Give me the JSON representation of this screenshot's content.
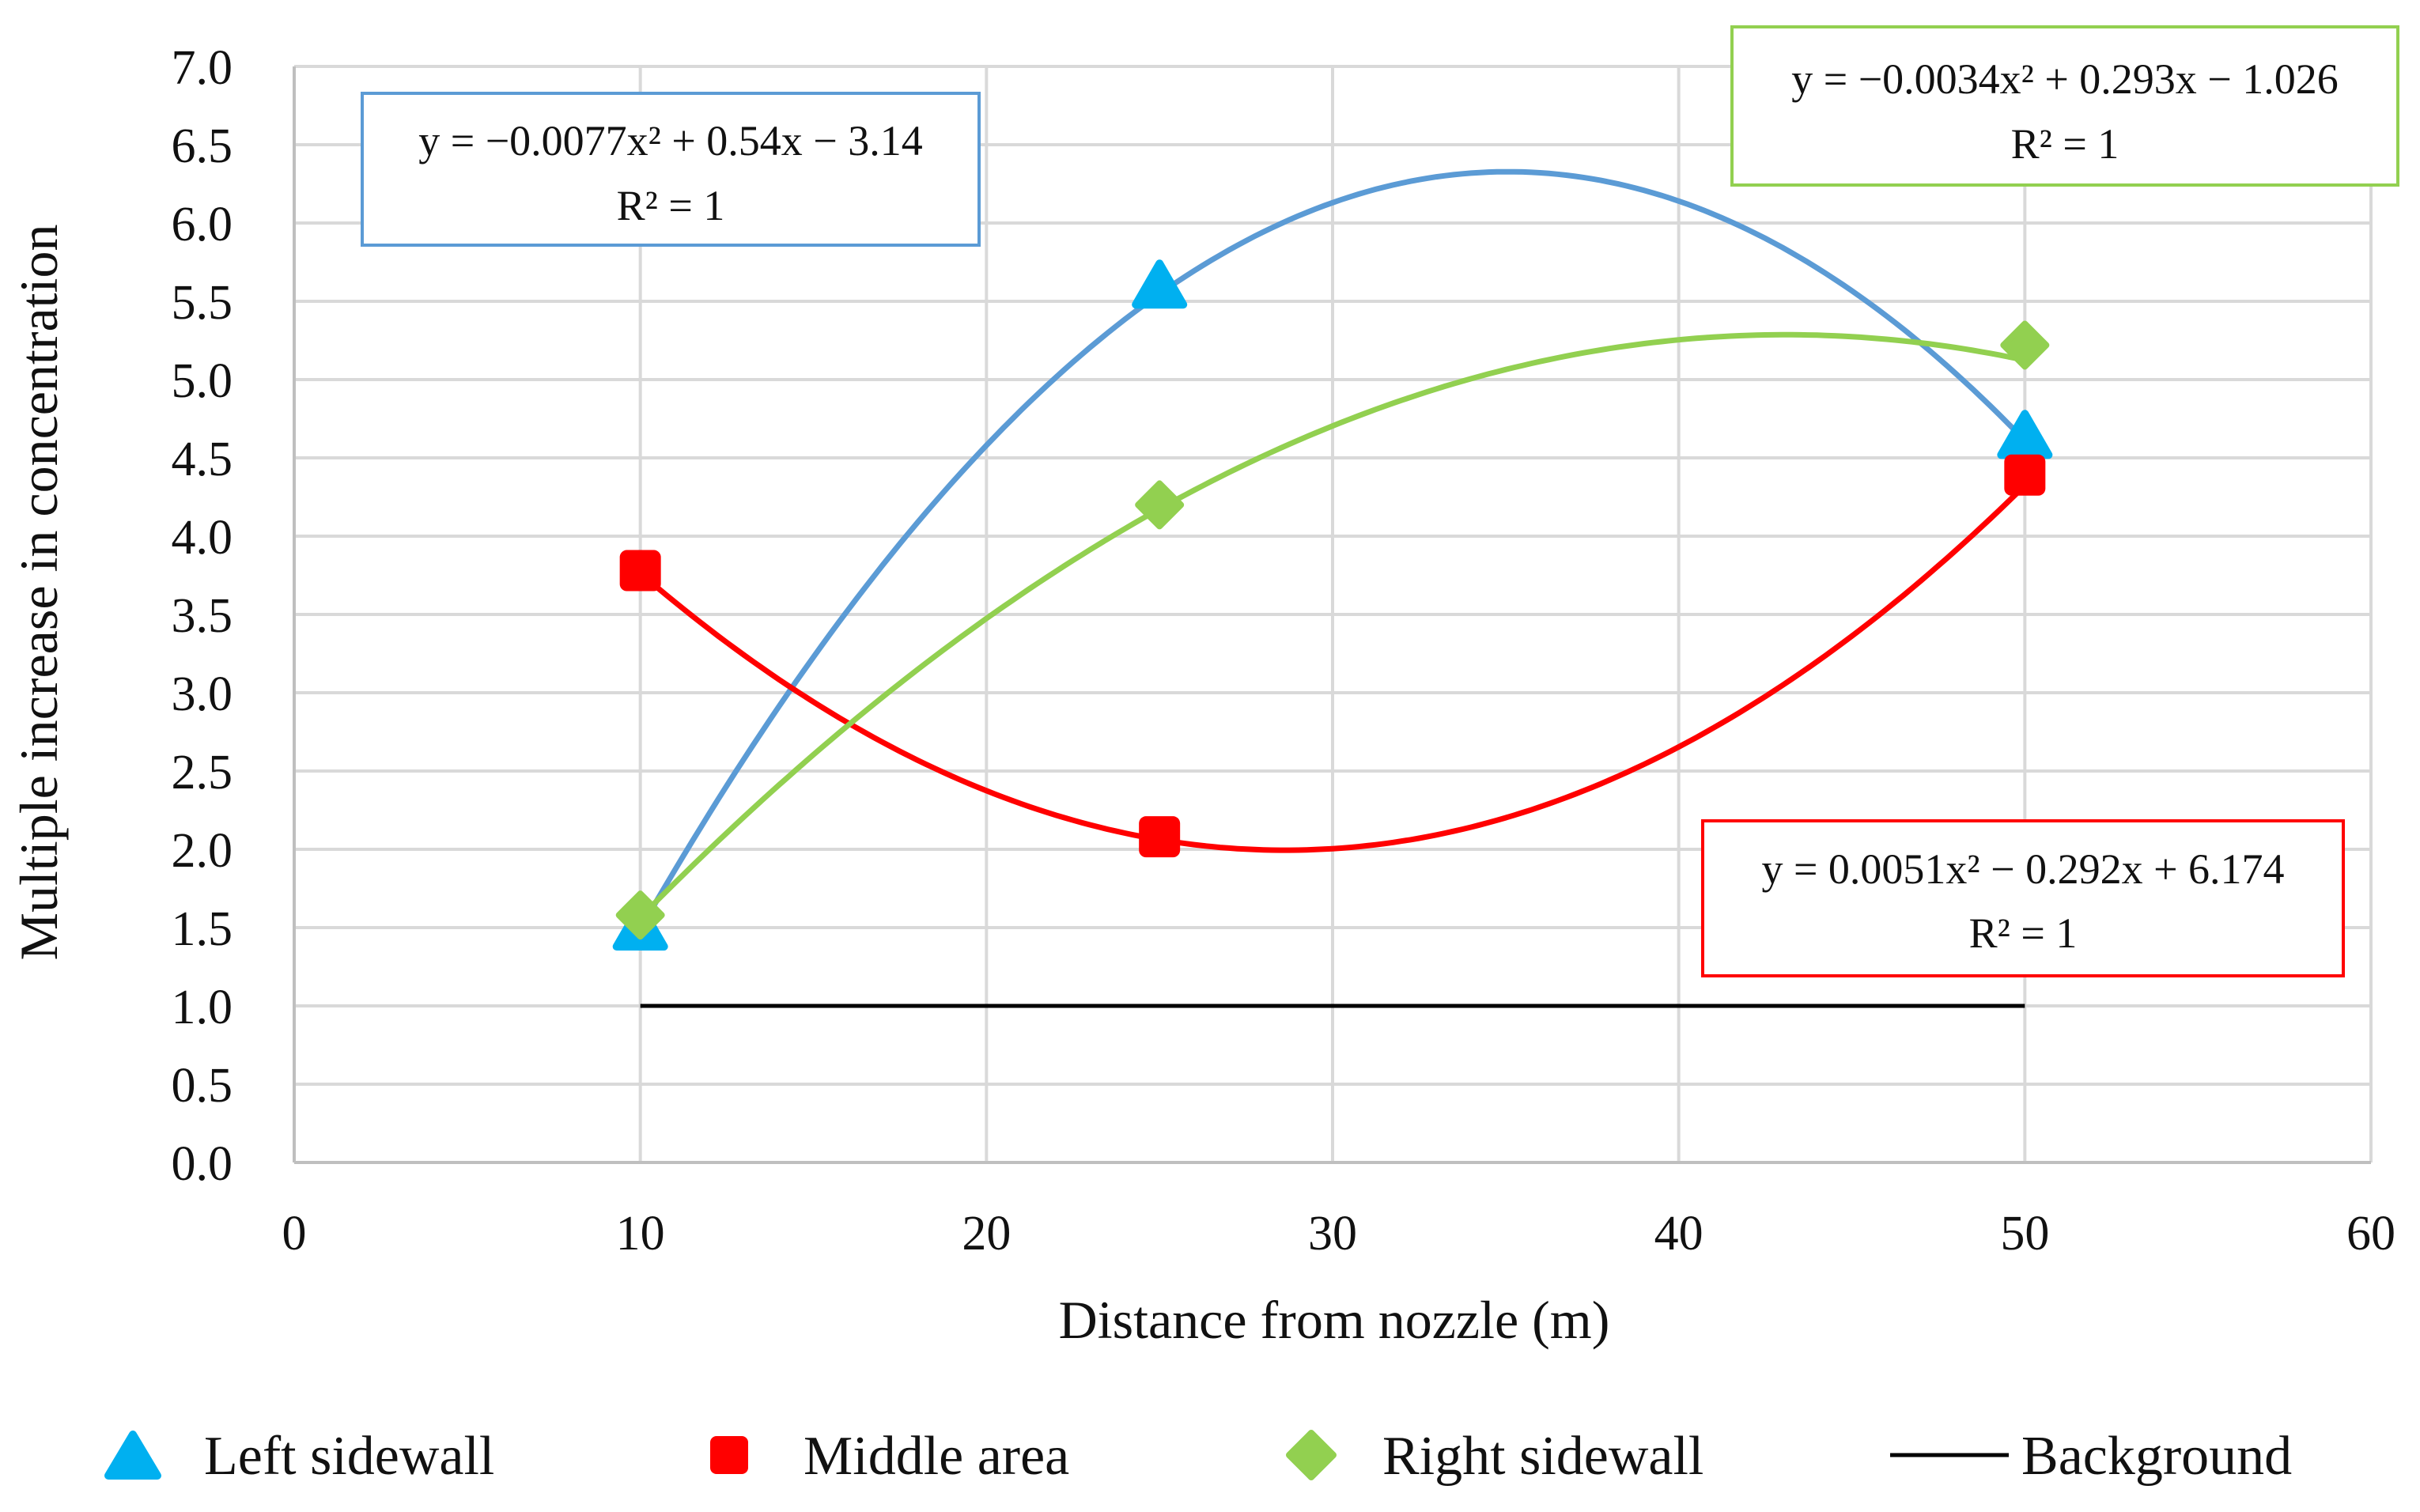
{
  "chart_data": {
    "type": "scatter",
    "title": "",
    "xlabel": "Distance from nozzle (m)",
    "ylabel": "Multiple increase in concentration",
    "xlim": [
      0,
      60
    ],
    "ylim": [
      0,
      7
    ],
    "x_ticks": [
      "0",
      "10",
      "20",
      "30",
      "40",
      "50",
      "60"
    ],
    "y_ticks": [
      "0.0",
      "0.5",
      "1.0",
      "1.5",
      "2.0",
      "2.5",
      "3.0",
      "3.5",
      "4.0",
      "4.5",
      "5.0",
      "5.5",
      "6.0",
      "6.5",
      "7.0"
    ],
    "grid": true,
    "legend_position": "bottom",
    "series": [
      {
        "name": "Left sidewall",
        "marker": "triangle",
        "marker_color": "#00B0F0",
        "trend_color": "#5B9BD5",
        "x": [
          10,
          25,
          50
        ],
        "y": [
          1.5,
          5.6,
          4.64
        ],
        "trendline": {
          "type": "polynomial",
          "a": -0.0077,
          "b": 0.54,
          "c": -3.14
        },
        "equation": "y = −0.0077x² + 0.54x − 3.14",
        "r2": "R² = 1"
      },
      {
        "name": "Middle area",
        "marker": "square",
        "marker_color": "#FF0000",
        "trend_color": "#FF0000",
        "x": [
          10,
          25,
          50
        ],
        "y": [
          3.78,
          2.08,
          4.39
        ],
        "trendline": {
          "type": "polynomial",
          "a": 0.0051,
          "b": -0.292,
          "c": 6.174
        },
        "equation": "y = 0.0051x² − 0.292x + 6.174",
        "r2": "R² = 1"
      },
      {
        "name": "Right sidewall",
        "marker": "diamond",
        "marker_color": "#92D050",
        "trend_color": "#92D050",
        "x": [
          10,
          25,
          50
        ],
        "y": [
          1.58,
          4.2,
          5.22
        ],
        "trendline": {
          "type": "polynomial",
          "a": -0.0034,
          "b": 0.293,
          "c": -1.026
        },
        "equation": "y = −0.0034x² + 0.293x − 1.026",
        "r2": "R² = 1"
      },
      {
        "name": "Background",
        "marker": "line",
        "line_color": "#000000",
        "x": [
          10,
          50
        ],
        "y": [
          1.0,
          1.0
        ]
      }
    ]
  }
}
